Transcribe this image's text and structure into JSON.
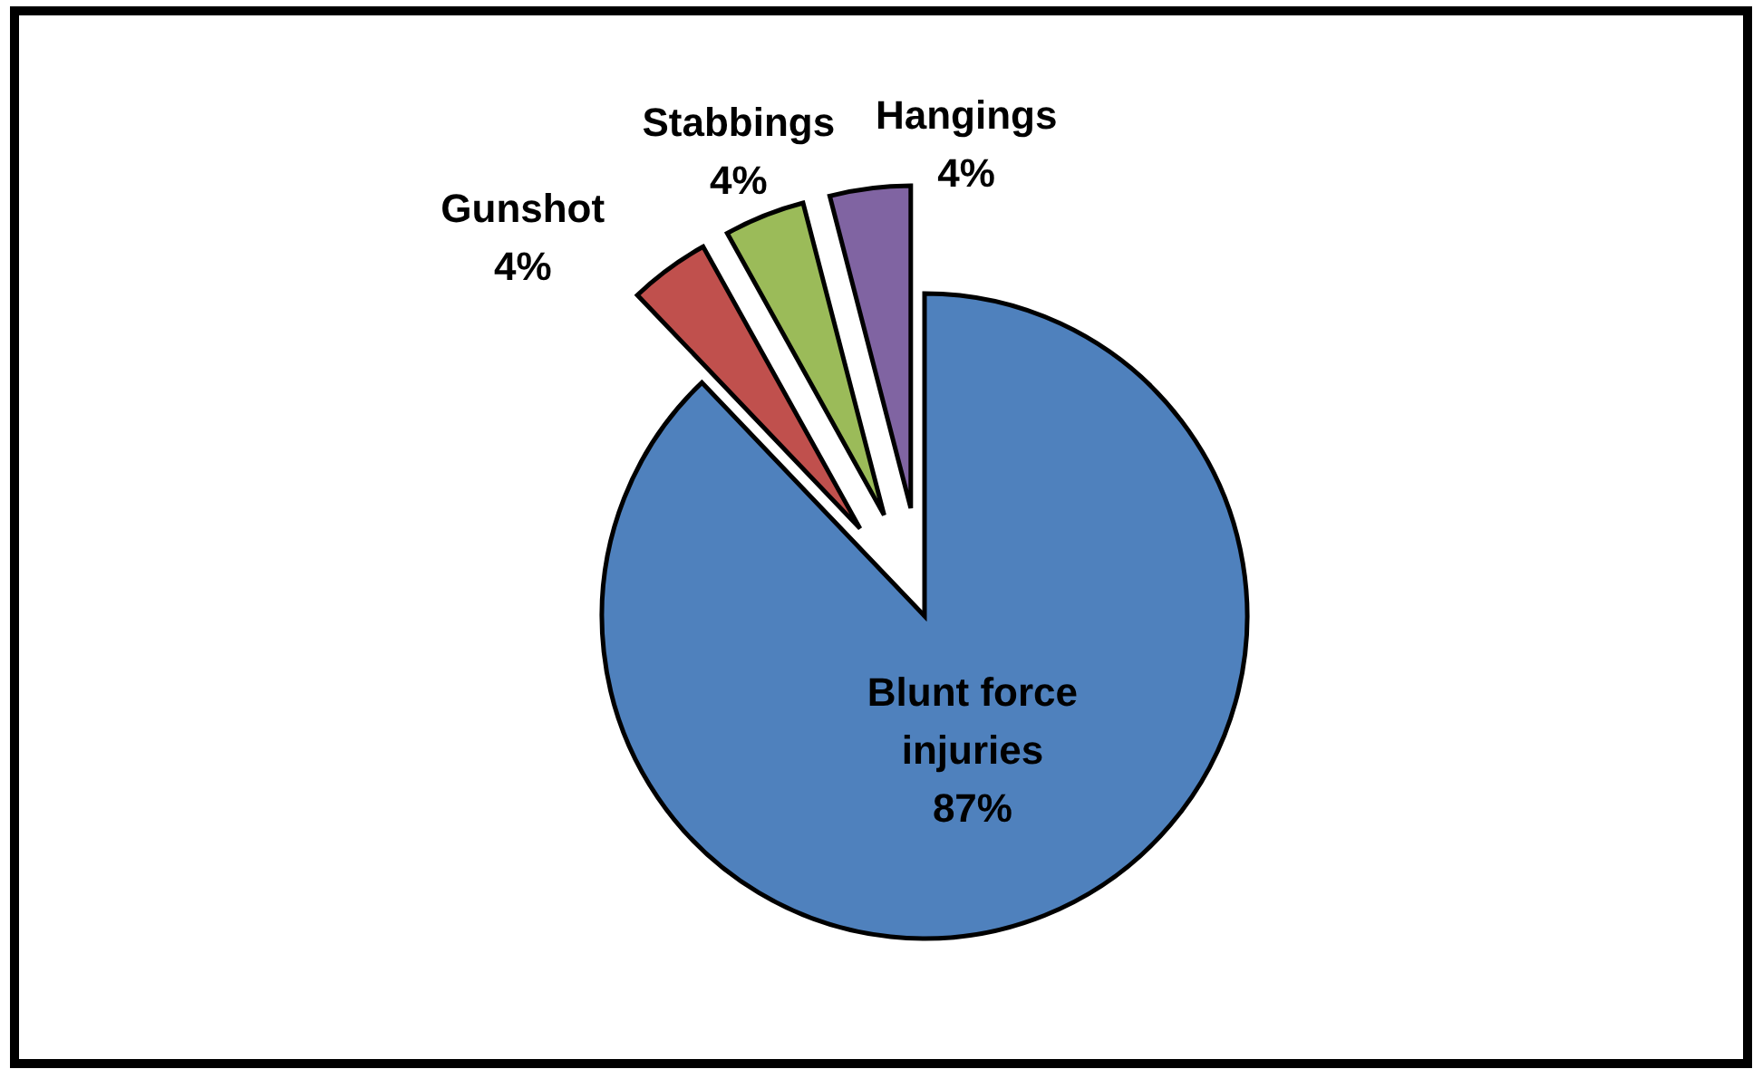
{
  "chart_data": {
    "type": "pie",
    "categories": [
      "Blunt force injuries",
      "Gunshot",
      "Stabbings",
      "Hangings"
    ],
    "values": [
      87,
      4,
      4,
      4
    ],
    "colors": [
      "#4f81bd",
      "#c0504d",
      "#9bbb59",
      "#8064a2"
    ],
    "value_labels": [
      "87%",
      "4%",
      "4%",
      "4%"
    ]
  }
}
